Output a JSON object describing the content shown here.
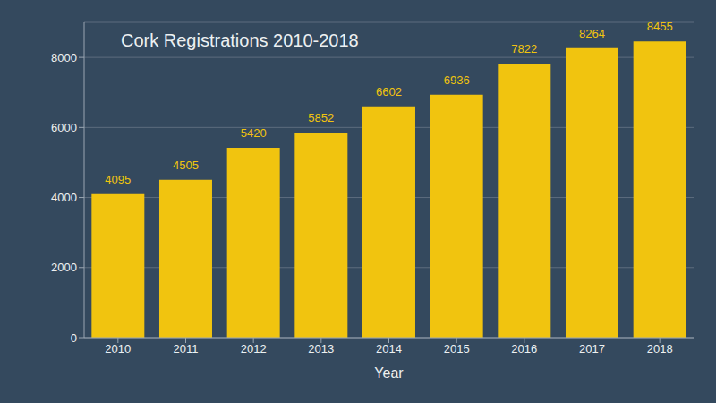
{
  "chart_data": {
    "type": "bar",
    "title": "Cork Registrations 2010-2018",
    "x_label": "Year",
    "categories": [
      "2010",
      "2011",
      "2012",
      "2013",
      "2014",
      "2015",
      "2016",
      "2017",
      "2018"
    ],
    "values": [
      4095,
      4505,
      5420,
      5852,
      6602,
      6936,
      7822,
      8264,
      8455
    ],
    "color": "#f1c40f",
    "ylim": [
      0,
      9000
    ],
    "yticks": [
      0,
      2000,
      4000,
      6000,
      8000
    ],
    "grid": true,
    "data_labels": true
  }
}
